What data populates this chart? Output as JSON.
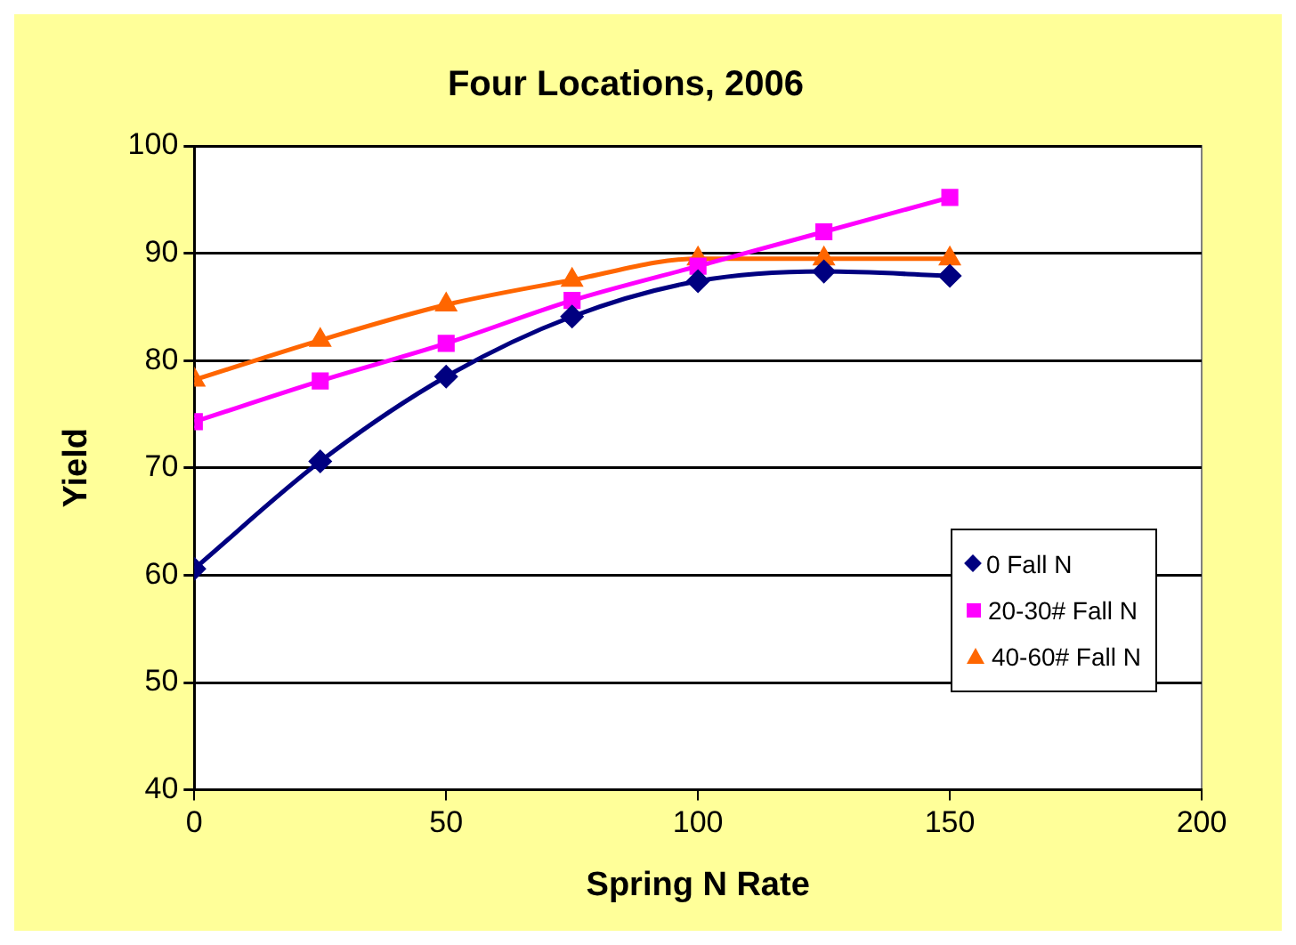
{
  "chart_data": {
    "type": "line",
    "title": "Four Locations, 2006",
    "xlabel": "Spring N Rate",
    "ylabel": "Yield",
    "x": [
      0,
      25,
      50,
      75,
      100,
      125,
      150
    ],
    "series": [
      {
        "name": "0 Fall N",
        "color": "#000080",
        "marker": "diamond",
        "values": [
          60.6,
          70.6,
          78.5,
          84.1,
          87.4,
          88.3,
          87.9
        ]
      },
      {
        "name": "20-30# Fall N",
        "color": "#ff00ff",
        "marker": "square",
        "values": [
          74.3,
          78.1,
          81.6,
          85.6,
          88.8,
          92,
          95.2
        ]
      },
      {
        "name": "40-60# Fall N",
        "color": "#ff6600",
        "marker": "triangle",
        "values": [
          78.2,
          81.9,
          85.2,
          87.5,
          89.5,
          89.5,
          89.5
        ]
      }
    ],
    "xlim": [
      0,
      200
    ],
    "xticks": [
      0,
      50,
      100,
      150,
      200
    ],
    "ylim": [
      40,
      100
    ],
    "yticks": [
      40,
      50,
      60,
      70,
      80,
      90,
      100
    ],
    "grid": "y",
    "legend": "bottom right"
  }
}
